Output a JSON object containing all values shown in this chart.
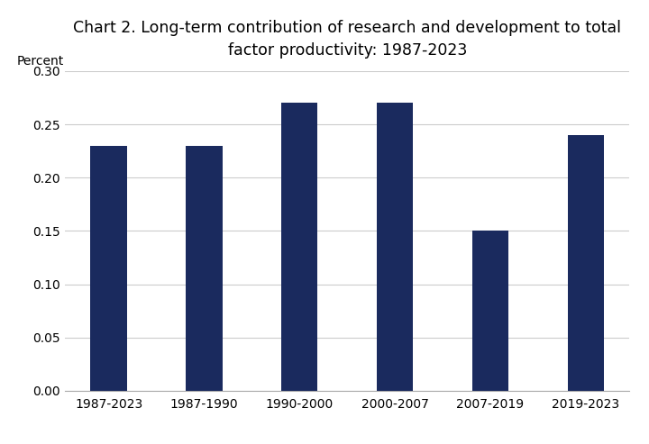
{
  "categories": [
    "1987-2023",
    "1987-1990",
    "1990-2000",
    "2000-2007",
    "2007-2019",
    "2019-2023"
  ],
  "values": [
    0.23,
    0.23,
    0.27,
    0.27,
    0.15,
    0.24
  ],
  "bar_color": "#1a2a5e",
  "title_line1": "Chart 2. Long-term contribution of research and development to total",
  "title_line2": "factor productivity: 1987-2023",
  "ylabel": "Percent",
  "ylim": [
    0,
    0.3
  ],
  "yticks": [
    0.0,
    0.05,
    0.1,
    0.15,
    0.2,
    0.25,
    0.3
  ],
  "background_color": "#ffffff",
  "grid_color": "#cccccc",
  "title_fontsize": 12.5,
  "label_fontsize": 10,
  "tick_fontsize": 10,
  "bar_width": 0.38
}
